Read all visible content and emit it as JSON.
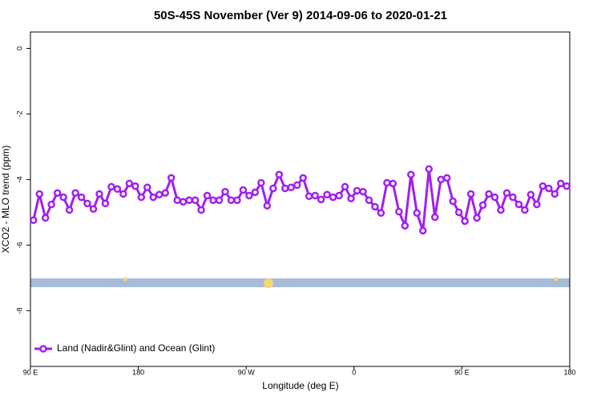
{
  "chart_data": {
    "type": "line",
    "title": "50S-45S November (Ver 9)   2014-09-06 to 2020-01-21",
    "x_label": "Longitude (deg E)",
    "y_label": "XCO2 - MLO trend (ppm)",
    "color": "#a020f0",
    "xlim": [
      90,
      540
    ],
    "ylim": [
      -9.7,
      0.5
    ],
    "xticks": [
      {
        "value": 90,
        "label": "90 E"
      },
      180,
      {
        "value": 270,
        "label": "90 W"
      },
      {
        "value": 360,
        "label": "0"
      },
      {
        "value": 450,
        "label": "90 E"
      },
      {
        "value": 540,
        "label": "180"
      }
    ],
    "yticks": [
      0,
      -2,
      -4,
      -6,
      -8
    ],
    "legend": "bottom-left",
    "x": [
      92.5,
      97.5,
      102.5,
      107.5,
      112.5,
      117.5,
      122.5,
      127.5,
      132.5,
      137.5,
      142.5,
      147.5,
      152.5,
      157.5,
      162.5,
      167.5,
      172.5,
      177.5,
      182.5,
      187.5,
      192.5,
      197.5,
      202.5,
      207.5,
      212.5,
      217.5,
      222.5,
      227.5,
      232.5,
      237.5,
      242.5,
      247.5,
      252.5,
      257.5,
      262.5,
      267.5,
      272.5,
      277.5,
      282.5,
      287.5,
      292.5,
      297.5,
      302.5,
      307.5,
      312.5,
      317.5,
      322.5,
      327.5,
      332.5,
      337.5,
      342.5,
      347.5,
      352.5,
      357.5,
      362.5,
      367.5,
      372.5,
      377.5,
      382.5,
      387.5,
      392.5,
      397.5,
      402.5,
      407.5,
      412.5,
      417.5,
      422.5,
      427.5,
      432.5,
      437.5,
      442.5,
      447.5,
      452.5,
      457.5,
      462.5,
      467.5,
      472.5,
      477.5,
      482.5,
      487.5,
      492.5,
      497.5,
      502.5,
      507.5,
      512.5,
      517.5,
      522.5,
      527.5,
      532.5,
      537.5
    ],
    "series": [
      {
        "name": "Land (Nadir&Glint) and Ocean (Glint)",
        "color": "#a020f0",
        "values": [
          -5.24,
          -4.44,
          -5.17,
          -4.76,
          -4.41,
          -4.54,
          -4.93,
          -4.41,
          -4.54,
          -4.73,
          -4.9,
          -4.44,
          -4.73,
          -4.22,
          -4.29,
          -4.44,
          -4.12,
          -4.2,
          -4.54,
          -4.24,
          -4.54,
          -4.46,
          -4.41,
          -3.95,
          -4.63,
          -4.68,
          -4.63,
          -4.63,
          -4.93,
          -4.49,
          -4.63,
          -4.63,
          -4.37,
          -4.63,
          -4.63,
          -4.32,
          -4.49,
          -4.39,
          -4.1,
          -4.8,
          -4.27,
          -3.85,
          -4.27,
          -4.24,
          -4.17,
          -3.95,
          -4.51,
          -4.49,
          -4.61,
          -4.46,
          -4.54,
          -4.49,
          -4.22,
          -4.58,
          -4.34,
          -4.37,
          -4.63,
          -4.83,
          -5.02,
          -4.1,
          -4.12,
          -4.98,
          -5.41,
          -3.85,
          -5.02,
          -5.56,
          -3.68,
          -5.15,
          -4.0,
          -3.95,
          -4.66,
          -5.0,
          -5.27,
          -4.44,
          -5.17,
          -4.78,
          -4.44,
          -4.54,
          -4.93,
          -4.41,
          -4.54,
          -4.76,
          -4.93,
          -4.46,
          -4.76,
          -4.2,
          -4.27,
          -4.44,
          -4.12,
          -4.2
        ]
      }
    ]
  }
}
